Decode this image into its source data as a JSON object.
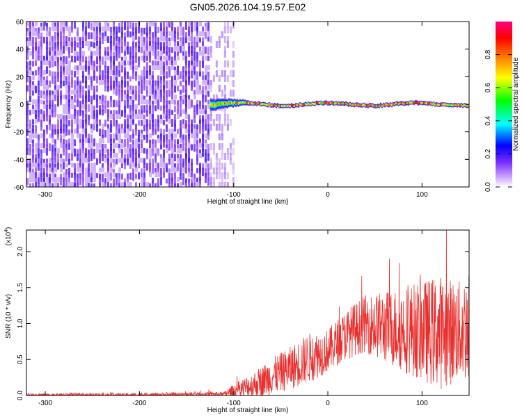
{
  "title": "GN05.2026.104.19.57.E02",
  "chart_data": [
    {
      "type": "heatmap",
      "xlabel": "Height of straight line (km)",
      "ylabel": "Frequency (Hz)",
      "xlim": [
        -320,
        150
      ],
      "ylim": [
        -60,
        60
      ],
      "xticks": [
        -300,
        -200,
        -100,
        0,
        100
      ],
      "yticks": [
        -60,
        -40,
        -20,
        0,
        20,
        40,
        60
      ],
      "colorbar": {
        "label": "Normalized spectral amplitude",
        "range": [
          0.0,
          1.0
        ],
        "ticks": [
          0.0,
          0.2,
          0.4,
          0.6,
          0.8
        ],
        "colormap": [
          "#ffffff",
          "#7b2bff",
          "#0000ff",
          "#00ffff",
          "#00ff00",
          "#ffff00",
          "#ff7f00",
          "#ff0000",
          "#ff0080"
        ]
      },
      "regions": [
        {
          "x_range": [
            -320,
            -125
          ],
          "freq_range": [
            -60,
            60
          ],
          "amplitude": 0.08,
          "pattern": "broadband noise"
        },
        {
          "x_range": [
            -125,
            -100
          ],
          "freq_range": [
            -60,
            60
          ],
          "amplitude": 0.03,
          "pattern": "faint noise"
        },
        {
          "x_range": [
            -125,
            150
          ],
          "center_freq": 0,
          "band_width_hz": 10,
          "amplitude": 0.9,
          "pattern": "narrow band centered at 0 Hz"
        }
      ]
    },
    {
      "type": "line",
      "xlabel": "Height of straight line (km)",
      "ylabel": "SNR (10 * v/v)",
      "multiplier_label": "(x10",
      "multiplier_exp": "4",
      "xlim": [
        -320,
        150
      ],
      "ylim": [
        0,
        2.3
      ],
      "xticks": [
        -300,
        -200,
        -100,
        0,
        100
      ],
      "yticks": [
        "0.0",
        "0.5",
        "1.0",
        "1.5",
        "2.0"
      ],
      "color": "#e8302e",
      "envelope": {
        "x": [
          -320,
          -200,
          -110,
          -100,
          -80,
          -60,
          -40,
          -20,
          0,
          20,
          40,
          60,
          80,
          100,
          120,
          140,
          150
        ],
        "mean": [
          0.01,
          0.01,
          0.02,
          0.06,
          0.14,
          0.26,
          0.38,
          0.52,
          0.62,
          0.85,
          1.0,
          0.95,
          0.92,
          0.9,
          0.88,
          0.9,
          0.95
        ],
        "spread": [
          0.02,
          0.02,
          0.03,
          0.1,
          0.18,
          0.25,
          0.3,
          0.35,
          0.3,
          0.35,
          0.4,
          0.5,
          0.6,
          0.7,
          0.8,
          0.7,
          0.8
        ]
      }
    }
  ]
}
